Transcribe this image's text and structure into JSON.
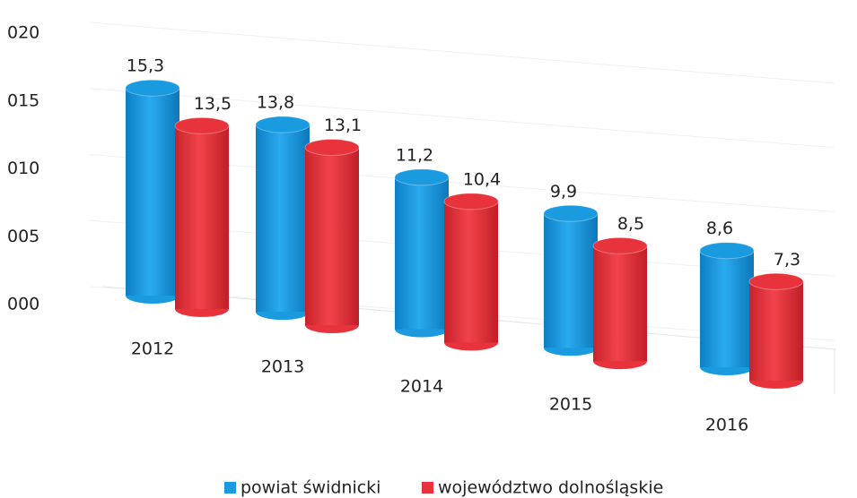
{
  "chart_data": {
    "type": "bar3d",
    "categories": [
      "2012",
      "2013",
      "2014",
      "2015",
      "2016"
    ],
    "series": [
      {
        "name": "powiat świdnicki",
        "color": "#1a9be0",
        "values": [
          15.3,
          13.8,
          11.2,
          9.9,
          8.6
        ],
        "value_labels": [
          "15,3",
          "13,8",
          "11,2",
          "9,9",
          "8,6"
        ]
      },
      {
        "name": "województwo dolnośląskie",
        "color": "#e8323c",
        "values": [
          13.5,
          13.1,
          10.4,
          8.5,
          7.3
        ],
        "value_labels": [
          "13,5",
          "13,1",
          "10,4",
          "8,5",
          "7,3"
        ]
      }
    ],
    "ylim": [
      0,
      20
    ],
    "yticks": [
      {
        "value": 0,
        "label": "000"
      },
      {
        "value": 5,
        "label": "005"
      },
      {
        "value": 10,
        "label": "010"
      },
      {
        "value": 15,
        "label": "015"
      },
      {
        "value": 20,
        "label": "020"
      }
    ],
    "grid": true,
    "legend": "bottom"
  }
}
